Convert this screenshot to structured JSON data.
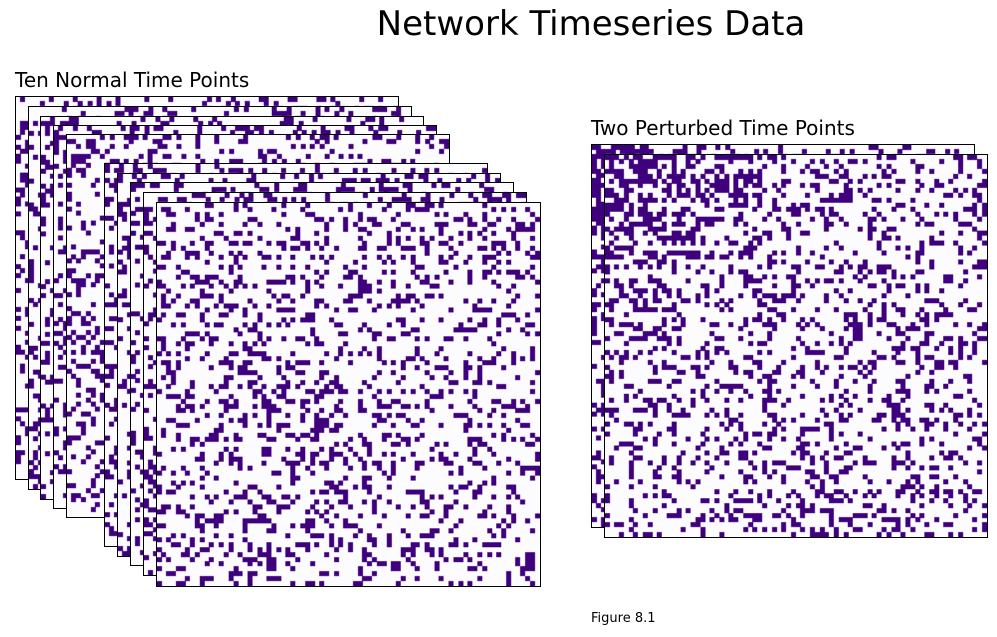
{
  "figure": {
    "title": "Network Timeseries Data",
    "caption": "Figure 8.1"
  },
  "left_group": {
    "title": "Ten Normal Time Points",
    "matrix_count": 10
  },
  "right_group": {
    "title": "Two Perturbed Time Points",
    "matrix_count": 2
  },
  "colors": {
    "filled": "#3f007d",
    "empty": "#fcfbfd",
    "frame": "#000000"
  }
}
